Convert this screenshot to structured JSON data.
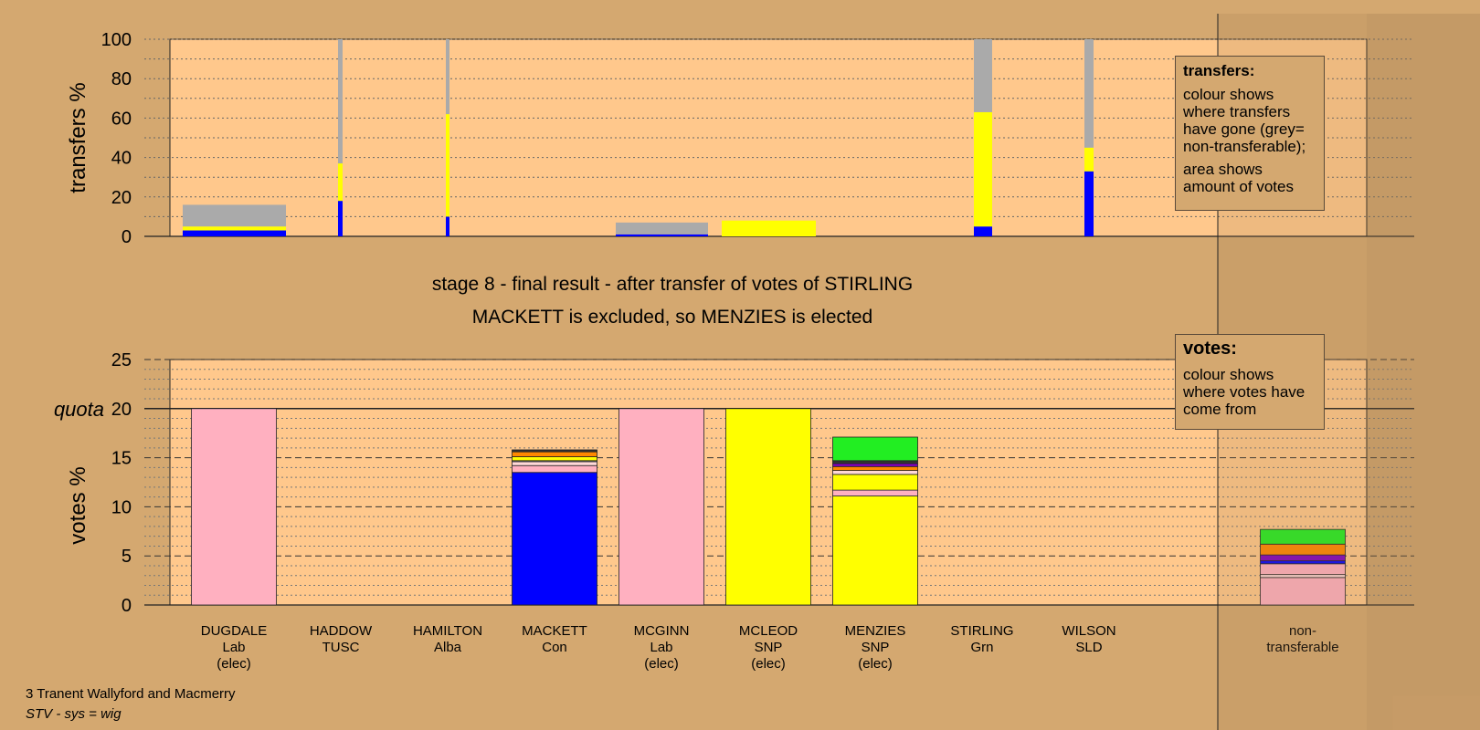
{
  "chart_data": [
    {
      "type": "bar",
      "stacked": true,
      "ylabel": "transfers %",
      "ylim": [
        0,
        100
      ],
      "yticks": [
        0,
        20,
        40,
        60,
        80,
        100
      ],
      "colors": {
        "blue": "#0000ff",
        "yellow": "#ffff00",
        "grey": "#aaaaaa"
      },
      "bars": [
        {
          "candidate": "DUGDALE",
          "width_votes": "wide",
          "segments": [
            {
              "color": "blue",
              "value": 3
            },
            {
              "color": "yellow",
              "value": 2
            },
            {
              "color": "grey",
              "value": 11
            }
          ]
        },
        {
          "candidate": "HADDOW",
          "segments": [
            {
              "color": "blue",
              "value": 18
            },
            {
              "color": "yellow",
              "value": 19
            },
            {
              "color": "grey",
              "value": 63
            }
          ]
        },
        {
          "candidate": "HAMILTON",
          "segments": [
            {
              "color": "blue",
              "value": 10
            },
            {
              "color": "yellow",
              "value": 52
            },
            {
              "color": "grey",
              "value": 38
            }
          ]
        },
        {
          "candidate": "MCGINN",
          "segments": [
            {
              "color": "blue",
              "value": 1
            },
            {
              "color": "grey",
              "value": 6
            }
          ]
        },
        {
          "candidate": "MCLEOD",
          "segments": [
            {
              "color": "yellow",
              "value": 8
            }
          ]
        },
        {
          "candidate": "STIRLING",
          "segments": [
            {
              "color": "blue",
              "value": 5
            },
            {
              "color": "yellow",
              "value": 58
            },
            {
              "color": "grey",
              "value": 37
            }
          ]
        },
        {
          "candidate": "WILSON",
          "segments": [
            {
              "color": "blue",
              "value": 33
            },
            {
              "color": "yellow",
              "value": 12
            },
            {
              "color": "grey",
              "value": 55
            }
          ]
        }
      ]
    },
    {
      "type": "bar",
      "stacked": true,
      "ylabel": "votes %",
      "ylim": [
        0,
        25
      ],
      "yticks": [
        0,
        5,
        10,
        15,
        20,
        25
      ],
      "quota": 20,
      "quota_label": "quota",
      "categories": [
        {
          "name": "DUGDALE",
          "party": "Lab",
          "note": "(elec)"
        },
        {
          "name": "HADDOW",
          "party": "TUSC",
          "note": ""
        },
        {
          "name": "HAMILTON",
          "party": "Alba",
          "note": ""
        },
        {
          "name": "MACKETT",
          "party": "Con",
          "note": ""
        },
        {
          "name": "MCGINN",
          "party": "Lab",
          "note": "(elec)"
        },
        {
          "name": "MCLEOD",
          "party": "SNP",
          "note": "(elec)"
        },
        {
          "name": "MENZIES",
          "party": "SNP",
          "note": "(elec)"
        },
        {
          "name": "STIRLING",
          "party": "Grn",
          "note": ""
        },
        {
          "name": "WILSON",
          "party": "SLD",
          "note": ""
        },
        {
          "name": "non-",
          "party": "transferable",
          "note": ""
        }
      ],
      "stacks": [
        [
          {
            "color": "#ffb0c0",
            "value": 20
          }
        ],
        [],
        [],
        [
          {
            "color": "#0000ff",
            "value": 13.5
          },
          {
            "color": "#ffb0c0",
            "value": 0.7
          },
          {
            "color": "#ffd8d8",
            "value": 0.4
          },
          {
            "color": "#ffffff",
            "value": 0.1
          },
          {
            "color": "#ffff00",
            "value": 0.4
          },
          {
            "color": "#ff8800",
            "value": 0.5
          },
          {
            "color": "#333333",
            "value": 0.2
          }
        ],
        [
          {
            "color": "#ffb0c0",
            "value": 20
          }
        ],
        [
          {
            "color": "#ffff00",
            "value": 20
          }
        ],
        [
          {
            "color": "#ffff00",
            "value": 11.1
          },
          {
            "color": "#ffb0c0",
            "value": 0.6
          },
          {
            "color": "#ffff00",
            "value": 1.6
          },
          {
            "color": "#ffd8d8",
            "value": 0.4
          },
          {
            "color": "#ff8800",
            "value": 0.4
          },
          {
            "color": "#8000c0",
            "value": 0.3
          },
          {
            "color": "#333333",
            "value": 0.3
          },
          {
            "color": "#22ee22",
            "value": 2.4
          }
        ],
        [],
        [],
        [
          {
            "color": "#ffb0c0",
            "value": 2.8
          },
          {
            "color": "#ffd8d8",
            "value": 0.3
          },
          {
            "color": "#ffb0c0",
            "value": 1.1
          },
          {
            "color": "#0000ff",
            "value": 0.3
          },
          {
            "color": "#8000c0",
            "value": 0.6
          },
          {
            "color": "#ff8800",
            "value": 1.1
          },
          {
            "color": "#22ee22",
            "value": 1.5
          }
        ]
      ]
    }
  ],
  "stage_title": "stage 8 - final result - after transfer of votes of STIRLING",
  "stage_result": "MACKETT is excluded, so MENZIES is elected",
  "transfers_legend": {
    "title": "transfers:",
    "line1": "colour shows where transfers have gone (grey= non-transferable);",
    "line2": "area shows amount of votes"
  },
  "votes_legend": {
    "title": "votes:",
    "line1": "colour shows where votes have come from"
  },
  "footer": {
    "ward": "3 Tranent Wallyford and Macmerry",
    "system": "STV - sys = wig"
  }
}
